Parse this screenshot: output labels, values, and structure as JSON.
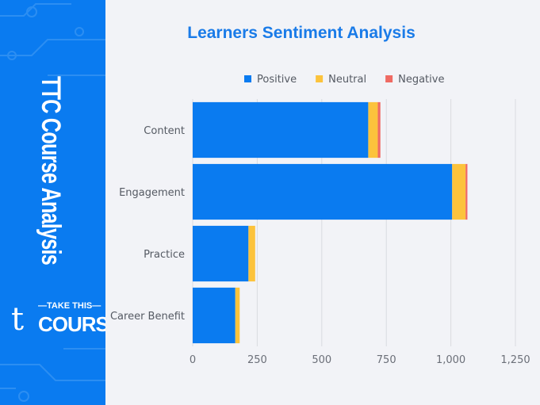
{
  "sidebar": {
    "title": "TTC Course Analysis",
    "logo_line1": "—TAKE THIS—",
    "logo_line2": "COURSE",
    "logo_mark": "t",
    "color": "#0a7bf0"
  },
  "chart_data": {
    "type": "bar",
    "orientation": "horizontal",
    "stacked": true,
    "title": "Learners Sentiment Analysis",
    "categories": [
      "Content",
      "Engagement",
      "Practice",
      "Career Benefit"
    ],
    "series": [
      {
        "name": "Positive",
        "color": "#0a7bf0",
        "values": [
          680,
          1005,
          216,
          165
        ]
      },
      {
        "name": "Neutral",
        "color": "#fcc33c",
        "values": [
          37,
          52,
          26,
          17
        ]
      },
      {
        "name": "Negative",
        "color": "#ef6a63",
        "values": [
          10,
          7,
          0,
          0
        ]
      }
    ],
    "xlim": [
      0,
      1250
    ],
    "xticks": [
      "0",
      "250",
      "500",
      "750",
      "1,000",
      "1,250"
    ],
    "xtick_values": [
      0,
      250,
      500,
      750,
      1000,
      1250
    ],
    "grid": true,
    "legend": "top"
  }
}
